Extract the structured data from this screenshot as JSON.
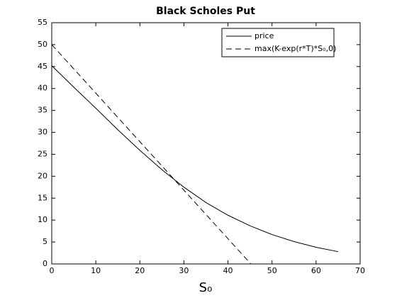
{
  "chart_data": {
    "type": "line",
    "title": "Black Scholes Put",
    "xlabel": "S₀",
    "xlim": [
      0,
      70
    ],
    "xticks": [
      0,
      10,
      20,
      30,
      40,
      50,
      60,
      70
    ],
    "ylim": [
      0,
      55
    ],
    "yticks": [
      0,
      5,
      10,
      15,
      20,
      25,
      30,
      35,
      40,
      45,
      50,
      55
    ],
    "grid": false,
    "legend": "upper right",
    "series": [
      {
        "name": "price",
        "color": "#000000",
        "dash": "solid",
        "x": [
          0,
          5,
          10,
          15,
          20,
          25,
          30,
          35,
          40,
          45,
          50,
          55,
          60,
          65
        ],
        "values": [
          45.2,
          40.3,
          35.5,
          30.6,
          25.9,
          21.5,
          17.5,
          14.0,
          11.1,
          8.7,
          6.7,
          5.1,
          3.8,
          2.8
        ]
      },
      {
        "name": "max(K-exp(r*T)*S₀,0)",
        "color": "#000000",
        "dash": "dashed",
        "x": [
          0,
          45.2,
          65
        ],
        "values": [
          50,
          0,
          0
        ]
      }
    ]
  }
}
